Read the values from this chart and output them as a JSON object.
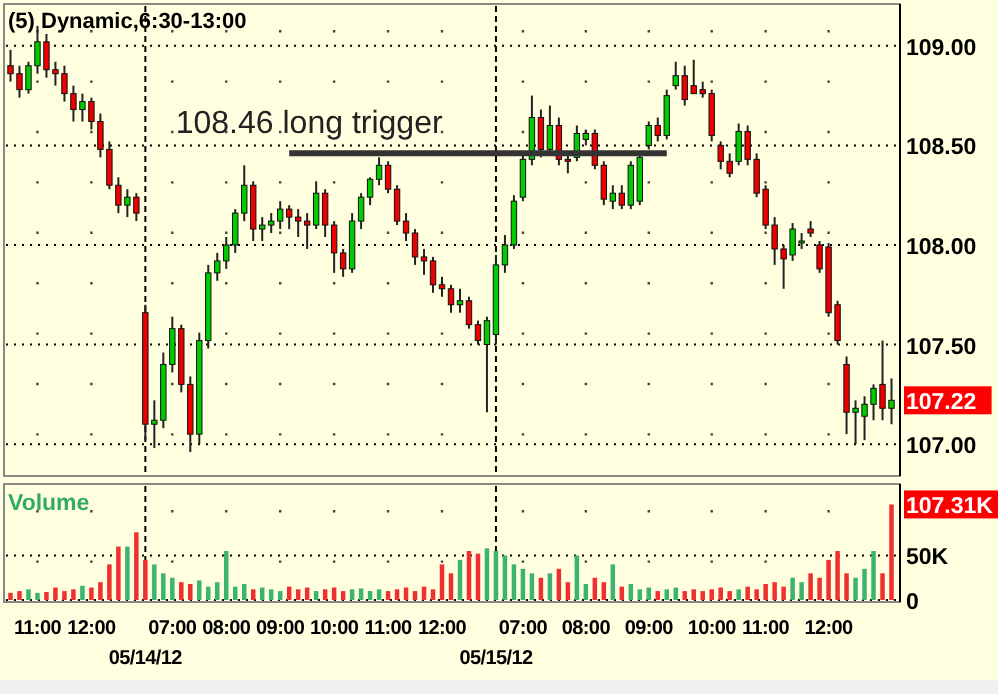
{
  "chart_data": [
    {
      "type": "candlestick",
      "title": "(5) Dynamic,6:30-13:00",
      "categories": [
        null,
        null,
        null,
        null,
        null,
        null,
        null,
        null,
        null,
        null,
        null,
        null,
        null,
        null,
        null,
        null,
        null,
        null,
        null,
        null,
        null,
        null,
        null,
        null,
        null,
        null,
        null,
        null,
        null,
        null,
        null,
        null,
        null,
        null,
        null,
        null,
        null,
        null,
        null,
        null,
        null,
        null,
        null,
        null,
        null,
        null,
        null,
        null,
        null,
        null,
        null,
        null,
        null,
        null,
        null,
        null,
        null,
        null,
        null,
        null,
        null,
        null,
        null,
        null,
        null,
        null,
        null,
        null,
        null,
        null,
        null,
        null,
        null,
        null,
        null,
        null,
        null,
        null,
        null,
        null,
        null,
        null,
        null,
        null,
        null,
        null,
        null,
        null,
        null,
        null,
        null,
        null,
        null,
        null,
        null,
        null,
        null,
        null,
        null
      ],
      "colors": [
        "#ee0000",
        "#ee0000",
        "#00cc00",
        "#00cc00",
        "#ee0000",
        "#ee0000",
        "#ee0000",
        "#ee0000",
        "#00cc00",
        "#ee0000",
        "#ee0000",
        "#ee0000",
        "#ee0000",
        "#00cc00",
        "#ee0000",
        "#ee0000",
        "#00cc00",
        "#00cc00",
        "#00cc00",
        "#ee0000",
        "#ee0000",
        "#00cc00",
        "#00cc00",
        "#00cc00",
        "#00cc00",
        "#00cc00",
        "#00cc00",
        "#ee0000",
        "#00cc00",
        "#00cc00",
        "#00cc00",
        "#ee0000",
        "#ee0000",
        "#ee0000",
        "#00cc00",
        "#ee0000",
        "#ee0000",
        "#ee0000",
        "#00cc00",
        "#00cc00",
        "#00cc00",
        "#00cc00",
        "#ee0000",
        "#ee0000",
        "#ee0000",
        "#ee0000",
        "#ee0000",
        "#ee0000",
        "#ee0000",
        "#ee0000",
        "#00cc00",
        "#ee0000",
        "#ee0000",
        "#00cc00",
        "#00cc00",
        "#00cc00",
        "#00cc00",
        "#00cc00",
        "#00cc00",
        "#ee0000",
        "#00cc00",
        "#ee0000",
        "#ee0000",
        "#00cc00",
        "#00cc00",
        "#ee0000",
        "#ee0000",
        "#00cc00",
        "#ee0000",
        "#00cc00",
        "#00cc00",
        "#00cc00",
        "#ee0000",
        "#00cc00",
        "#00cc00",
        "#ee0000",
        "#ee0000",
        "#ee0000",
        "#ee0000",
        "#ee0000",
        "#ee0000",
        "#00cc00",
        "#ee0000",
        "#ee0000",
        "#ee0000",
        "#ee0000",
        "#ee0000",
        "#00cc00",
        "#00cc00",
        "#ee0000",
        "#ee0000",
        "#ee0000",
        "#ee0000",
        "#ee0000",
        "#00cc00",
        "#00cc00",
        "#00cc00",
        "#ee0000",
        "#00cc00"
      ],
      "ohlc": [
        [
          108.9,
          108.98,
          108.82,
          108.86
        ],
        [
          108.86,
          108.9,
          108.74,
          108.78
        ],
        [
          108.78,
          108.92,
          108.76,
          108.9
        ],
        [
          108.9,
          109.1,
          108.86,
          109.02
        ],
        [
          109.02,
          109.06,
          108.84,
          108.88
        ],
        [
          108.88,
          108.92,
          108.8,
          108.86
        ],
        [
          108.86,
          108.9,
          108.72,
          108.76
        ],
        [
          108.76,
          108.8,
          108.62,
          108.68
        ],
        [
          108.68,
          108.76,
          108.62,
          108.72
        ],
        [
          108.72,
          108.74,
          108.58,
          108.62
        ],
        [
          108.62,
          108.66,
          108.44,
          108.48
        ],
        [
          108.48,
          108.52,
          108.28,
          108.3
        ],
        [
          108.3,
          108.34,
          108.16,
          108.2
        ],
        [
          108.2,
          108.28,
          108.14,
          108.24
        ],
        [
          108.24,
          108.26,
          108.12,
          108.16
        ],
        [
          107.66,
          107.7,
          107.02,
          107.1
        ],
        [
          107.1,
          107.22,
          106.98,
          107.12
        ],
        [
          107.12,
          107.46,
          107.08,
          107.4
        ],
        [
          107.4,
          107.64,
          107.36,
          107.58
        ],
        [
          107.58,
          107.6,
          107.26,
          107.3
        ],
        [
          107.3,
          107.34,
          106.96,
          107.05
        ],
        [
          107.05,
          107.56,
          107.0,
          107.52
        ],
        [
          107.52,
          107.9,
          107.48,
          107.86
        ],
        [
          107.86,
          107.96,
          107.82,
          107.92
        ],
        [
          107.92,
          108.04,
          107.88,
          108.0
        ],
        [
          108.0,
          108.18,
          107.96,
          108.16
        ],
        [
          108.16,
          108.4,
          108.12,
          108.3
        ],
        [
          108.3,
          108.32,
          108.02,
          108.08
        ],
        [
          108.08,
          108.14,
          108.02,
          108.1
        ],
        [
          108.1,
          108.16,
          108.06,
          108.12
        ],
        [
          108.12,
          108.22,
          108.08,
          108.18
        ],
        [
          108.18,
          108.2,
          108.08,
          108.14
        ],
        [
          108.14,
          108.18,
          108.04,
          108.12
        ],
        [
          108.12,
          108.16,
          107.98,
          108.1
        ],
        [
          108.1,
          108.32,
          108.08,
          108.26
        ],
        [
          108.26,
          108.28,
          108.04,
          108.1
        ],
        [
          108.1,
          108.12,
          107.86,
          107.96
        ],
        [
          107.96,
          107.98,
          107.84,
          107.88
        ],
        [
          107.88,
          108.16,
          107.86,
          108.12
        ],
        [
          108.12,
          108.26,
          108.08,
          108.24
        ],
        [
          108.24,
          108.34,
          108.2,
          108.33
        ],
        [
          108.33,
          108.44,
          108.3,
          108.4
        ],
        [
          108.4,
          108.42,
          108.26,
          108.28
        ],
        [
          108.28,
          108.3,
          108.1,
          108.12
        ],
        [
          108.12,
          108.16,
          108.02,
          108.06
        ],
        [
          108.06,
          108.08,
          107.9,
          107.94
        ],
        [
          107.94,
          107.98,
          107.85,
          107.92
        ],
        [
          107.92,
          107.94,
          107.76,
          107.8
        ],
        [
          107.8,
          107.84,
          107.74,
          107.78
        ],
        [
          107.78,
          107.8,
          107.66,
          107.7
        ],
        [
          107.7,
          107.78,
          107.66,
          107.72
        ],
        [
          107.72,
          107.74,
          107.58,
          107.6
        ],
        [
          107.6,
          107.62,
          107.5,
          107.52
        ],
        [
          107.5,
          107.64,
          107.16,
          107.62
        ],
        [
          107.55,
          107.95,
          107.5,
          107.9
        ],
        [
          107.9,
          108.05,
          107.86,
          108.0
        ],
        [
          108.0,
          108.25,
          107.98,
          108.22
        ],
        [
          108.24,
          108.46,
          108.22,
          108.43
        ],
        [
          108.43,
          108.75,
          108.4,
          108.64
        ],
        [
          108.64,
          108.68,
          108.44,
          108.48
        ],
        [
          108.48,
          108.7,
          108.46,
          108.6
        ],
        [
          108.6,
          108.64,
          108.4,
          108.43
        ],
        [
          108.43,
          108.47,
          108.36,
          108.42
        ],
        [
          108.44,
          108.6,
          108.42,
          108.56
        ],
        [
          108.53,
          108.58,
          108.5,
          108.56
        ],
        [
          108.56,
          108.58,
          108.38,
          108.4
        ],
        [
          108.4,
          108.42,
          108.2,
          108.23
        ],
        [
          108.22,
          108.3,
          108.18,
          108.26
        ],
        [
          108.26,
          108.3,
          108.18,
          108.2
        ],
        [
          108.2,
          108.42,
          108.18,
          108.4
        ],
        [
          108.22,
          108.46,
          108.2,
          108.44
        ],
        [
          108.5,
          108.62,
          108.48,
          108.6
        ],
        [
          108.6,
          108.64,
          108.52,
          108.55
        ],
        [
          108.55,
          108.78,
          108.53,
          108.75
        ],
        [
          108.8,
          108.92,
          108.78,
          108.85
        ],
        [
          108.85,
          108.9,
          108.7,
          108.73
        ],
        [
          108.8,
          108.93,
          108.76,
          108.76
        ],
        [
          108.78,
          108.82,
          108.74,
          108.76
        ],
        [
          108.76,
          108.78,
          108.52,
          108.55
        ],
        [
          108.5,
          108.52,
          108.38,
          108.42
        ],
        [
          108.42,
          108.46,
          108.34,
          108.36
        ],
        [
          108.42,
          108.61,
          108.4,
          108.57
        ],
        [
          108.57,
          108.6,
          108.4,
          108.43
        ],
        [
          108.43,
          108.46,
          108.24,
          108.26
        ],
        [
          108.28,
          108.3,
          108.08,
          108.1
        ],
        [
          108.1,
          108.14,
          107.9,
          107.98
        ],
        [
          107.98,
          108.0,
          107.78,
          107.93
        ],
        [
          107.95,
          108.11,
          107.92,
          108.08
        ],
        [
          108.02,
          108.06,
          107.98,
          108.02
        ],
        [
          108.08,
          108.12,
          108.04,
          108.06
        ],
        [
          108.0,
          108.02,
          107.86,
          107.88
        ],
        [
          107.99,
          108.01,
          107.64,
          107.66
        ],
        [
          107.7,
          107.72,
          107.5,
          107.52
        ],
        [
          107.4,
          107.44,
          107.05,
          107.16
        ],
        [
          107.16,
          107.22,
          107.0,
          107.18
        ],
        [
          107.14,
          107.24,
          107.02,
          107.2
        ],
        [
          107.2,
          107.3,
          107.12,
          107.28
        ],
        [
          107.3,
          107.52,
          107.12,
          107.18
        ],
        [
          107.18,
          107.33,
          107.1,
          107.22
        ]
      ],
      "series": [
        {
          "type": "line",
          "color": "#333333",
          "values": [
            null,
            null,
            null,
            null,
            null,
            null,
            null,
            null,
            null,
            null,
            null,
            null,
            null,
            null,
            null,
            null,
            null,
            null,
            null,
            null,
            null,
            null,
            null,
            null,
            null,
            null,
            null,
            null,
            null,
            null,
            null,
            108.46,
            108.46,
            108.46,
            108.46,
            108.46,
            108.46,
            108.46,
            108.46,
            108.46,
            108.46,
            108.46,
            108.46,
            108.46,
            108.46,
            108.46,
            108.46,
            108.46,
            108.46,
            108.46,
            108.46,
            108.46,
            108.46,
            108.46,
            108.46,
            108.46,
            108.46,
            108.46,
            108.46,
            108.46,
            108.46,
            108.46,
            108.46,
            108.46,
            108.46,
            108.46,
            108.46,
            108.46,
            108.46,
            108.46,
            108.46,
            108.46,
            108.46,
            108.46,
            null,
            null,
            null,
            null,
            null,
            null,
            null,
            null,
            null,
            null,
            null,
            null,
            null,
            null,
            null,
            null,
            null,
            null,
            null,
            null,
            null,
            null,
            null,
            null,
            null
          ]
        }
      ],
      "ylim": [
        106.85,
        109.2
      ],
      "yticks": [
        {
          "value": 107,
          "label": "107.00"
        },
        {
          "value": 107.5,
          "label": "107.50"
        },
        {
          "value": 108,
          "label": "108.00"
        },
        {
          "value": 108.5,
          "label": "108.50"
        },
        {
          "value": 109,
          "label": "109.00"
        }
      ],
      "grid": true,
      "tick_labels": "y",
      "annotations": [
        {
          "text": "108.46 long trigger",
          "y": 108.46
        },
        "107.22"
      ]
    },
    {
      "type": "bar",
      "title": "Volume",
      "categories": [
        null,
        null,
        null,
        "11:00",
        null,
        null,
        null,
        null,
        null,
        "12:00",
        null,
        null,
        null,
        null,
        null,
        "05/14/12",
        null,
        null,
        "07:00",
        null,
        null,
        null,
        null,
        null,
        "08:00",
        null,
        null,
        null,
        null,
        null,
        "09:00",
        null,
        null,
        null,
        null,
        null,
        "10:00",
        null,
        null,
        null,
        null,
        null,
        "11:00",
        null,
        null,
        null,
        null,
        null,
        "12:00",
        null,
        null,
        null,
        null,
        null,
        "05/15/12",
        null,
        null,
        "07:00",
        null,
        null,
        null,
        null,
        null,
        null,
        "08:00",
        null,
        null,
        null,
        null,
        null,
        null,
        "09:00",
        null,
        null,
        null,
        null,
        null,
        null,
        "10:00",
        null,
        null,
        null,
        null,
        null,
        "11:00",
        null,
        null,
        null,
        null,
        null,
        null,
        "12:00",
        null,
        null,
        null,
        null,
        null,
        null,
        null
      ],
      "values": [
        8,
        10,
        12,
        8,
        9,
        14,
        10,
        12,
        16,
        14,
        20,
        40,
        60,
        60,
        76,
        45,
        40,
        30,
        25,
        20,
        18,
        22,
        15,
        20,
        55,
        15,
        18,
        12,
        14,
        12,
        10,
        15,
        12,
        14,
        10,
        12,
        14,
        10,
        12,
        13,
        10,
        12,
        10,
        12,
        14,
        10,
        15,
        12,
        40,
        30,
        45,
        55,
        52,
        58,
        55,
        50,
        40,
        35,
        30,
        25,
        30,
        35,
        20,
        50,
        18,
        25,
        20,
        40,
        15,
        18,
        12,
        14,
        10,
        12,
        14,
        10,
        12,
        10,
        12,
        14,
        10,
        12,
        15,
        12,
        18,
        20,
        15,
        25,
        20,
        30,
        25,
        45,
        55,
        30,
        25,
        35,
        55,
        30,
        107.31
      ],
      "colors": [
        "#f03030",
        "#f03030",
        "#3cb371",
        "#3cb371",
        "#f03030",
        "#f03030",
        "#f03030",
        "#f03030",
        "#3cb371",
        "#f03030",
        "#f03030",
        "#f03030",
        "#f03030",
        "#3cb371",
        "#f03030",
        "#f03030",
        "#3cb371",
        "#3cb371",
        "#3cb371",
        "#f03030",
        "#f03030",
        "#3cb371",
        "#3cb371",
        "#3cb371",
        "#3cb371",
        "#3cb371",
        "#3cb371",
        "#f03030",
        "#3cb371",
        "#3cb371",
        "#3cb371",
        "#f03030",
        "#f03030",
        "#f03030",
        "#3cb371",
        "#f03030",
        "#f03030",
        "#f03030",
        "#3cb371",
        "#3cb371",
        "#3cb371",
        "#3cb371",
        "#f03030",
        "#f03030",
        "#f03030",
        "#f03030",
        "#f03030",
        "#f03030",
        "#f03030",
        "#f03030",
        "#3cb371",
        "#f03030",
        "#f03030",
        "#3cb371",
        "#3cb371",
        "#3cb371",
        "#3cb371",
        "#3cb371",
        "#3cb371",
        "#f03030",
        "#3cb371",
        "#f03030",
        "#f03030",
        "#3cb371",
        "#3cb371",
        "#f03030",
        "#f03030",
        "#3cb371",
        "#f03030",
        "#3cb371",
        "#3cb371",
        "#3cb371",
        "#f03030",
        "#3cb371",
        "#3cb371",
        "#f03030",
        "#f03030",
        "#f03030",
        "#f03030",
        "#f03030",
        "#f03030",
        "#3cb371",
        "#f03030",
        "#f03030",
        "#f03030",
        "#f03030",
        "#f03030",
        "#3cb371",
        "#3cb371",
        "#f03030",
        "#f03030",
        "#f03030",
        "#f03030",
        "#f03030",
        "#3cb371",
        "#3cb371",
        "#3cb371",
        "#f03030",
        "#f03030"
      ],
      "ylim": [
        0,
        128
      ],
      "yticks": [
        {
          "value": 0,
          "label": "0"
        },
        {
          "value": 50,
          "label": "50K"
        }
      ],
      "grid": true,
      "annotations": [
        "107.31K"
      ]
    }
  ]
}
